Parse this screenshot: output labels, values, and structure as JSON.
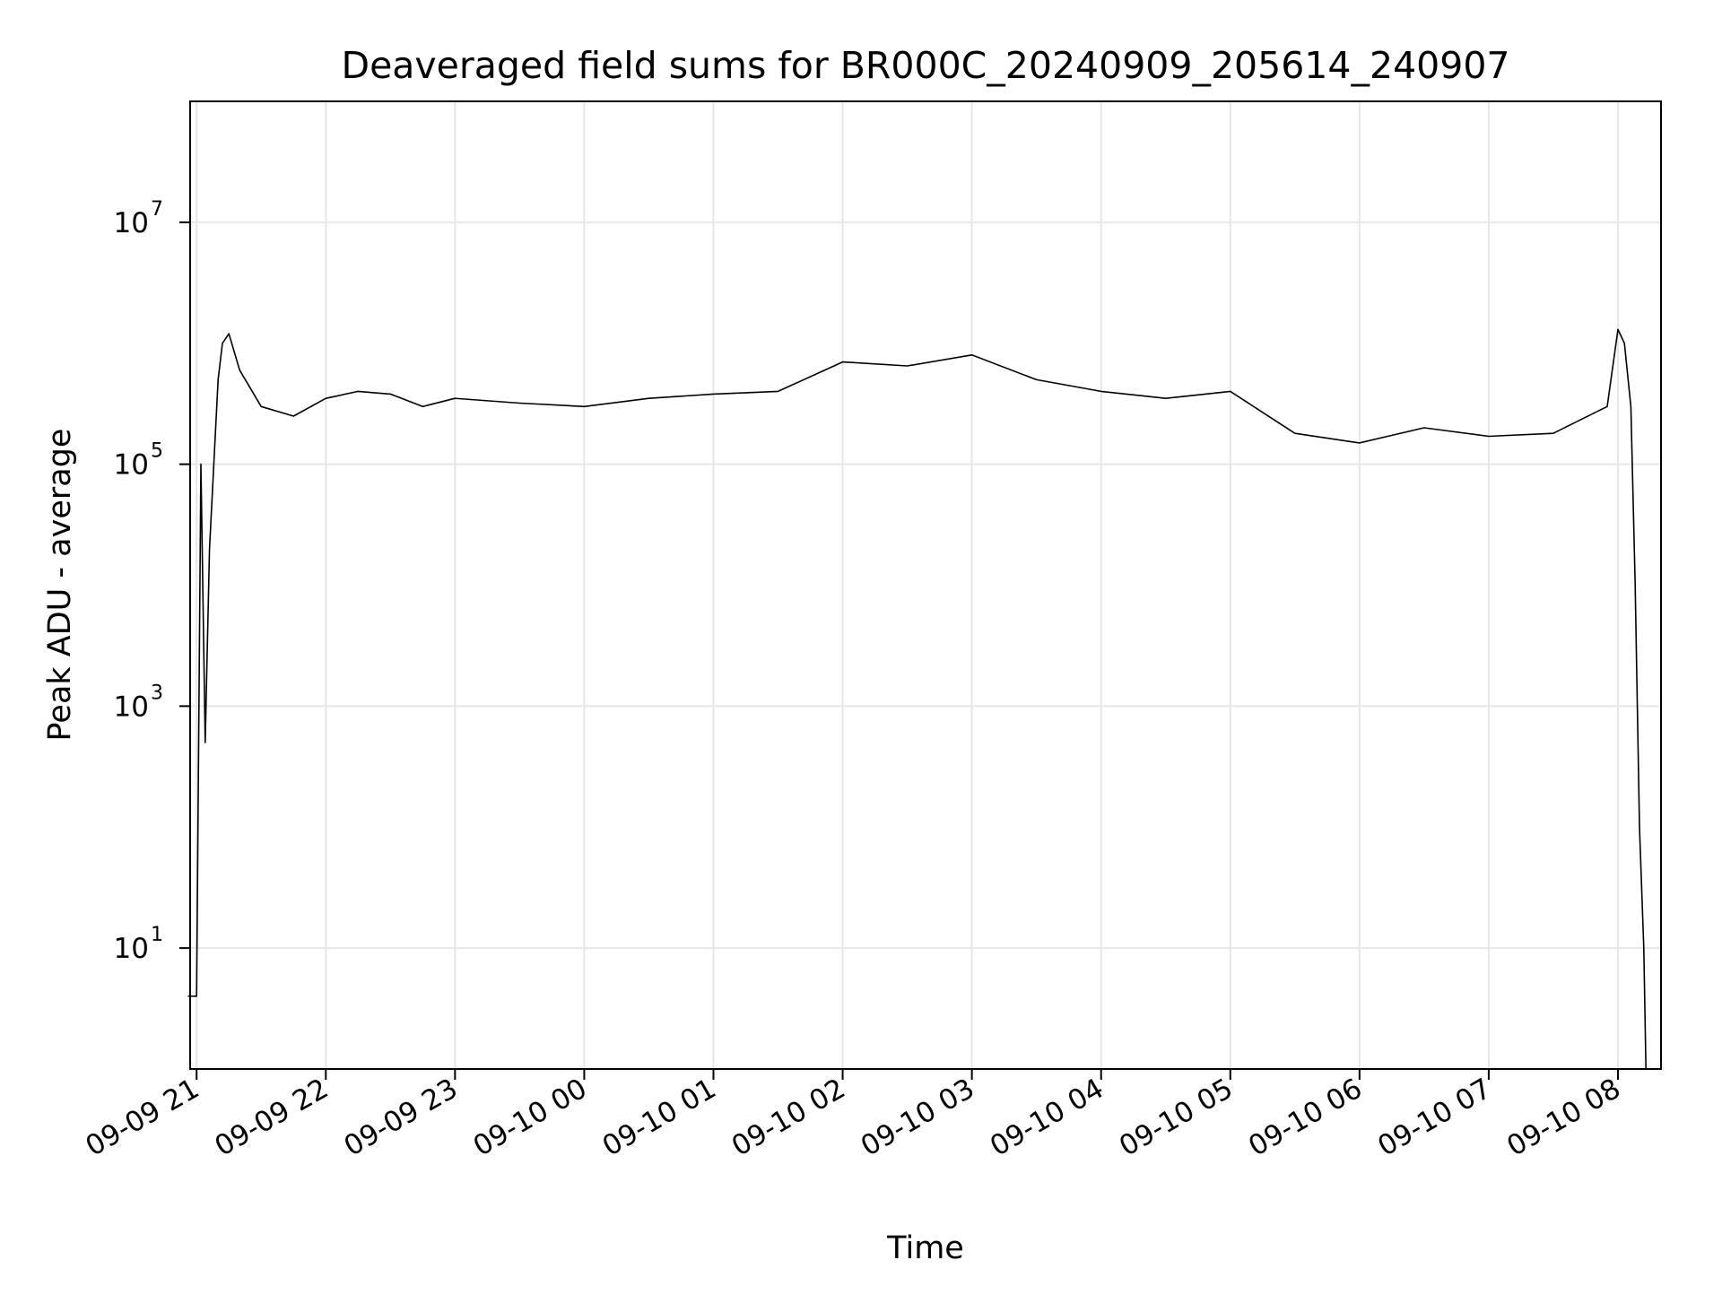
{
  "chart_data": {
    "type": "line",
    "title": "Deaveraged field sums for BR000C_20240909_205614_240907",
    "xlabel": "Time",
    "ylabel": "Peak ADU - average",
    "x_tick_labels": [
      "09-09 21",
      "09-09 22",
      "09-09 23",
      "09-10 00",
      "09-10 01",
      "09-10 02",
      "09-10 03",
      "09-10 04",
      "09-10 05",
      "09-10 06",
      "09-10 07",
      "09-10 08"
    ],
    "x_ticks": [
      "2024-09-09 21:00",
      "2024-09-09 22:00",
      "2024-09-09 23:00",
      "2024-09-10 00:00",
      "2024-09-10 01:00",
      "2024-09-10 02:00",
      "2024-09-10 03:00",
      "2024-09-10 04:00",
      "2024-09-10 05:00",
      "2024-09-10 06:00",
      "2024-09-10 07:00",
      "2024-09-10 08:00"
    ],
    "xlim": [
      "2024-09-09 20:57",
      "2024-09-10 08:20"
    ],
    "y_scale": "log",
    "ylim": [
      1,
      100000000.0
    ],
    "y_tick_values": [
      10,
      1000,
      100000,
      10000000
    ],
    "y_tick_bases": [
      "10",
      "10",
      "10",
      "10"
    ],
    "y_tick_exponents": [
      "1",
      "3",
      "5",
      "7"
    ],
    "grid": true,
    "line_color": "#000000",
    "grid_color": "#e6e6e6",
    "series": [
      {
        "x": [
          "2024-09-09 20:56",
          "2024-09-09 20:58",
          "2024-09-09 21:00",
          "2024-09-09 21:02",
          "2024-09-09 21:04",
          "2024-09-09 21:06",
          "2024-09-09 21:08",
          "2024-09-09 21:10",
          "2024-09-09 21:12",
          "2024-09-09 21:15",
          "2024-09-09 21:20",
          "2024-09-09 21:30",
          "2024-09-09 21:45",
          "2024-09-09 22:00",
          "2024-09-09 22:15",
          "2024-09-09 22:30",
          "2024-09-09 22:45",
          "2024-09-09 23:00",
          "2024-09-09 23:30",
          "2024-09-10 00:00",
          "2024-09-10 00:30",
          "2024-09-10 01:00",
          "2024-09-10 01:30",
          "2024-09-10 02:00",
          "2024-09-10 02:30",
          "2024-09-10 03:00",
          "2024-09-10 03:30",
          "2024-09-10 04:00",
          "2024-09-10 04:30",
          "2024-09-10 05:00",
          "2024-09-10 05:30",
          "2024-09-10 06:00",
          "2024-09-10 06:30",
          "2024-09-10 07:00",
          "2024-09-10 07:30",
          "2024-09-10 07:55",
          "2024-09-10 08:00",
          "2024-09-10 08:03",
          "2024-09-10 08:06",
          "2024-09-10 08:08",
          "2024-09-10 08:10",
          "2024-09-10 08:12",
          "2024-09-10 08:13"
        ],
        "values": [
          4,
          4,
          4,
          100000,
          500,
          20000,
          100000,
          500000,
          1000000,
          1200000,
          600000,
          300000,
          250000,
          350000,
          400000,
          380000,
          300000,
          350000,
          320000,
          300000,
          350000,
          380000,
          400000,
          700000,
          650000,
          800000,
          500000,
          400000,
          350000,
          400000,
          180000,
          150000,
          200000,
          170000,
          180000,
          300000,
          1300000,
          1000000,
          300000,
          10000,
          100,
          10,
          1
        ]
      }
    ]
  }
}
